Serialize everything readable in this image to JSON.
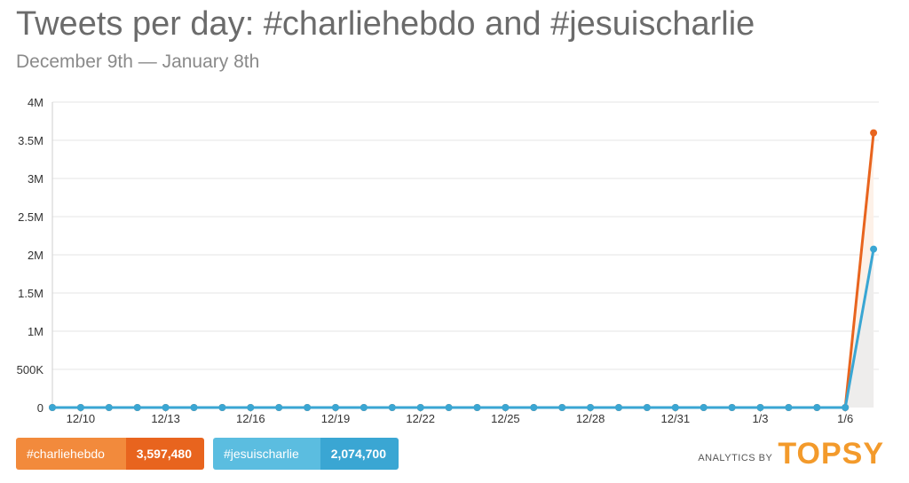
{
  "title": "Tweets per day: #charliehebdo and #jesuischarlie",
  "subtitle": "December 9th — January 8th",
  "legend": [
    {
      "name": "#charliehebdo",
      "value": "3,597,480",
      "color": "#e8641e"
    },
    {
      "name": "#jesuischarlie",
      "value": "2,074,700",
      "color": "#3aa6d3"
    }
  ],
  "branding": {
    "prefix": "ANALYTICS BY",
    "logo": "TOPSY",
    "logo_color": "#f39a2b"
  },
  "chart_data": {
    "type": "line",
    "title": "Tweets per day: #charliehebdo and #jesuischarlie",
    "subtitle": "December 9th — January 8th",
    "xlabel": "",
    "ylabel": "",
    "x": [
      "12/9",
      "12/10",
      "12/11",
      "12/12",
      "12/13",
      "12/14",
      "12/15",
      "12/16",
      "12/17",
      "12/18",
      "12/19",
      "12/20",
      "12/21",
      "12/22",
      "12/23",
      "12/24",
      "12/25",
      "12/26",
      "12/27",
      "12/28",
      "12/29",
      "12/30",
      "12/31",
      "1/1",
      "1/2",
      "1/3",
      "1/4",
      "1/5",
      "1/6",
      "1/7"
    ],
    "x_tick_labels": [
      "12/10",
      "12/13",
      "12/16",
      "12/19",
      "12/22",
      "12/25",
      "12/28",
      "12/31",
      "1/3",
      "1/6"
    ],
    "y_ticks": [
      {
        "value": 0,
        "label": "0"
      },
      {
        "value": 500000,
        "label": "500K"
      },
      {
        "value": 1000000,
        "label": "1M"
      },
      {
        "value": 1500000,
        "label": "1.5M"
      },
      {
        "value": 2000000,
        "label": "2M"
      },
      {
        "value": 2500000,
        "label": "2.5M"
      },
      {
        "value": 3000000,
        "label": "3M"
      },
      {
        "value": 3500000,
        "label": "3.5M"
      },
      {
        "value": 4000000,
        "label": "4M"
      }
    ],
    "ylim": [
      0,
      4000000
    ],
    "grid": true,
    "legend_position": "bottom-left",
    "series": [
      {
        "name": "#charliehebdo",
        "color": "#e8641e",
        "values": [
          0,
          0,
          0,
          0,
          0,
          0,
          0,
          0,
          0,
          0,
          0,
          0,
          0,
          0,
          0,
          0,
          0,
          0,
          0,
          0,
          0,
          0,
          0,
          0,
          0,
          0,
          0,
          0,
          0,
          3597480
        ]
      },
      {
        "name": "#jesuischarlie",
        "color": "#3aa6d3",
        "values": [
          0,
          0,
          0,
          0,
          0,
          0,
          0,
          0,
          0,
          0,
          0,
          0,
          0,
          0,
          0,
          0,
          0,
          0,
          0,
          0,
          0,
          0,
          0,
          0,
          0,
          0,
          0,
          0,
          0,
          2074700
        ]
      }
    ]
  }
}
